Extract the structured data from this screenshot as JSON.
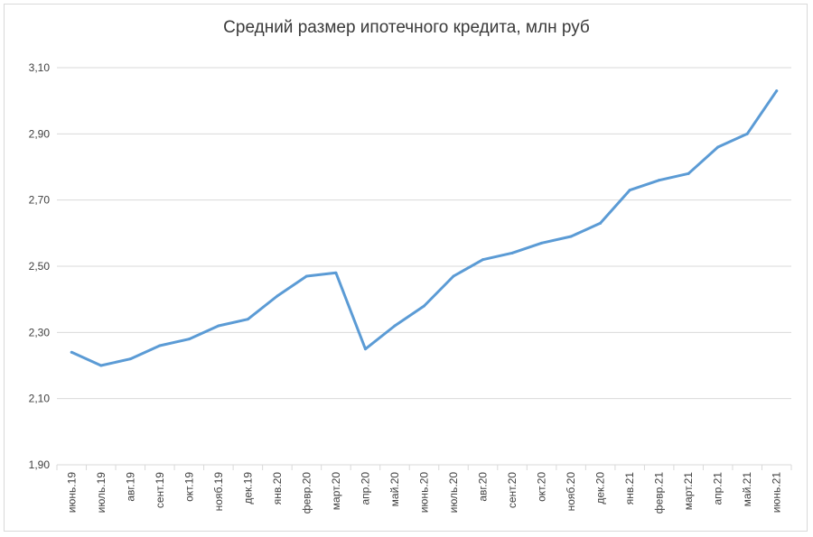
{
  "chart_data": {
    "type": "line",
    "title": "Средний размер ипотечного кредита, млн руб",
    "categories": [
      "июнь.19",
      "июль.19",
      "авг.19",
      "сент.19",
      "окт.19",
      "нояб.19",
      "дек.19",
      "янв.20",
      "февр.20",
      "март.20",
      "апр.20",
      "май.20",
      "июнь.20",
      "июль.20",
      "авг.20",
      "сент.20",
      "окт.20",
      "нояб.20",
      "дек.20",
      "янв.21",
      "февр.21",
      "март.21",
      "апр.21",
      "май.21",
      "июнь.21"
    ],
    "series": [
      {
        "values": [
          2.24,
          2.2,
          2.22,
          2.26,
          2.28,
          2.32,
          2.34,
          2.41,
          2.47,
          2.48,
          2.25,
          2.32,
          2.38,
          2.47,
          2.52,
          2.54,
          2.57,
          2.59,
          2.63,
          2.73,
          2.76,
          2.78,
          2.86,
          2.9,
          3.03
        ]
      }
    ],
    "yticks": [
      "1,90",
      "2,10",
      "2,30",
      "2,50",
      "2,70",
      "2,90",
      "3,10"
    ],
    "ylim": [
      1.9,
      3.1
    ],
    "grid": true,
    "line_color": "#5b9bd5",
    "grid_color": "#d9d9d9"
  }
}
